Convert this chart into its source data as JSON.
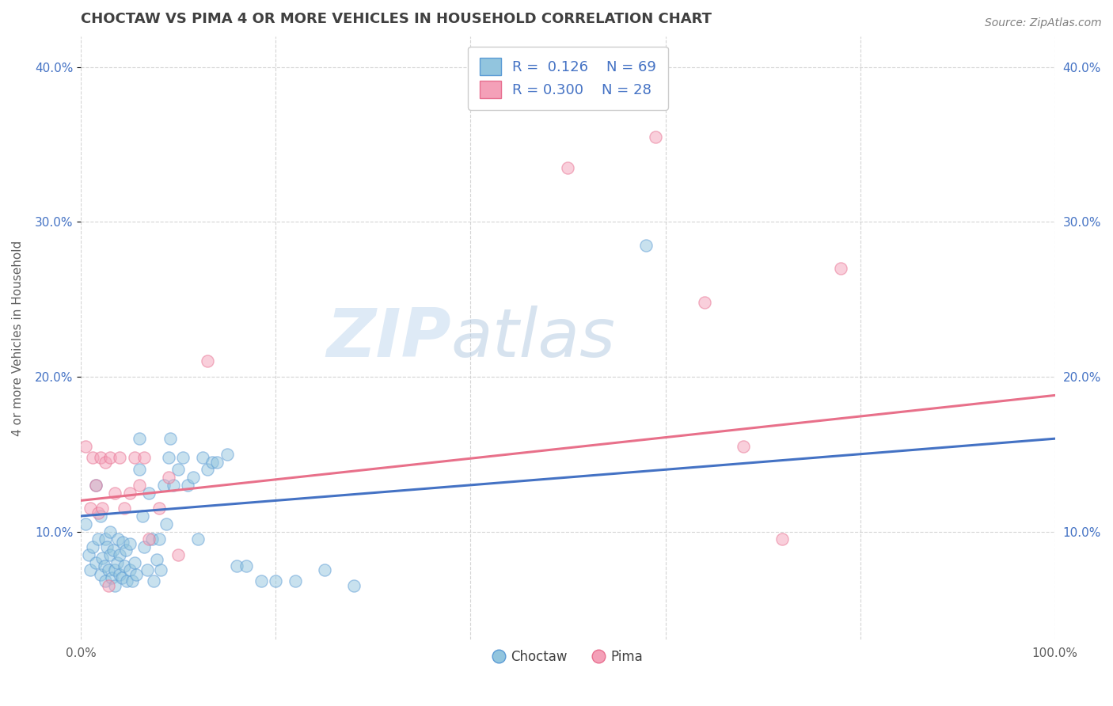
{
  "title": "CHOCTAW VS PIMA 4 OR MORE VEHICLES IN HOUSEHOLD CORRELATION CHART",
  "source": "Source: ZipAtlas.com",
  "ylabel": "4 or more Vehicles in Household",
  "watermark_zip": "ZIP",
  "watermark_atlas": "atlas",
  "xlim": [
    0,
    1.0
  ],
  "ylim": [
    0.03,
    0.42
  ],
  "xticks": [
    0.0,
    0.2,
    0.4,
    0.6,
    0.8,
    1.0
  ],
  "xtick_labels": [
    "0.0%",
    "",
    "",
    "",
    "",
    "100.0%"
  ],
  "yticks": [
    0.1,
    0.2,
    0.3,
    0.4
  ],
  "ytick_labels": [
    "10.0%",
    "20.0%",
    "30.0%",
    "40.0%"
  ],
  "choctaw_color": "#92C5DE",
  "pima_color": "#F4A0B8",
  "choctaw_edge_color": "#5B9BD5",
  "pima_edge_color": "#E87090",
  "choctaw_line_color": "#4472C4",
  "pima_line_color": "#E8708A",
  "legend_r_choctaw": "0.126",
  "legend_n_choctaw": "69",
  "legend_r_pima": "0.300",
  "legend_n_pima": "28",
  "choctaw_scatter_x": [
    0.005,
    0.008,
    0.01,
    0.012,
    0.015,
    0.015,
    0.018,
    0.02,
    0.02,
    0.022,
    0.024,
    0.025,
    0.025,
    0.027,
    0.028,
    0.03,
    0.03,
    0.032,
    0.033,
    0.035,
    0.035,
    0.037,
    0.038,
    0.04,
    0.04,
    0.042,
    0.043,
    0.045,
    0.046,
    0.047,
    0.05,
    0.05,
    0.053,
    0.055,
    0.057,
    0.06,
    0.06,
    0.063,
    0.065,
    0.068,
    0.07,
    0.073,
    0.075,
    0.078,
    0.08,
    0.082,
    0.085,
    0.088,
    0.09,
    0.092,
    0.095,
    0.1,
    0.105,
    0.11,
    0.115,
    0.12,
    0.125,
    0.13,
    0.135,
    0.14,
    0.15,
    0.16,
    0.17,
    0.185,
    0.2,
    0.22,
    0.25,
    0.28,
    0.58
  ],
  "choctaw_scatter_y": [
    0.105,
    0.085,
    0.075,
    0.09,
    0.13,
    0.08,
    0.095,
    0.072,
    0.11,
    0.083,
    0.078,
    0.095,
    0.068,
    0.09,
    0.075,
    0.1,
    0.085,
    0.07,
    0.088,
    0.075,
    0.065,
    0.08,
    0.095,
    0.072,
    0.085,
    0.07,
    0.093,
    0.078,
    0.088,
    0.068,
    0.075,
    0.092,
    0.068,
    0.08,
    0.072,
    0.14,
    0.16,
    0.11,
    0.09,
    0.075,
    0.125,
    0.095,
    0.068,
    0.082,
    0.095,
    0.075,
    0.13,
    0.105,
    0.148,
    0.16,
    0.13,
    0.14,
    0.148,
    0.13,
    0.135,
    0.095,
    0.148,
    0.14,
    0.145,
    0.145,
    0.15,
    0.078,
    0.078,
    0.068,
    0.068,
    0.068,
    0.075,
    0.065,
    0.285
  ],
  "pima_scatter_x": [
    0.005,
    0.01,
    0.012,
    0.015,
    0.018,
    0.02,
    0.022,
    0.025,
    0.028,
    0.03,
    0.035,
    0.04,
    0.045,
    0.05,
    0.055,
    0.06,
    0.065,
    0.07,
    0.08,
    0.09,
    0.1,
    0.13,
    0.5,
    0.59,
    0.64,
    0.68,
    0.72,
    0.78
  ],
  "pima_scatter_y": [
    0.155,
    0.115,
    0.148,
    0.13,
    0.112,
    0.148,
    0.115,
    0.145,
    0.065,
    0.148,
    0.125,
    0.148,
    0.115,
    0.125,
    0.148,
    0.13,
    0.148,
    0.095,
    0.115,
    0.135,
    0.085,
    0.21,
    0.335,
    0.355,
    0.248,
    0.155,
    0.095,
    0.27
  ],
  "choctaw_trend_x": [
    0.0,
    1.0
  ],
  "choctaw_trend_y": [
    0.11,
    0.16
  ],
  "pima_trend_x": [
    0.0,
    1.0
  ],
  "pima_trend_y": [
    0.12,
    0.188
  ],
  "background_color": "#FFFFFF",
  "grid_color": "#D0D0D0",
  "title_color": "#404040",
  "axis_color": "#606060",
  "dot_size": 120,
  "dot_alpha": 0.5,
  "dot_linewidth": 1.0
}
